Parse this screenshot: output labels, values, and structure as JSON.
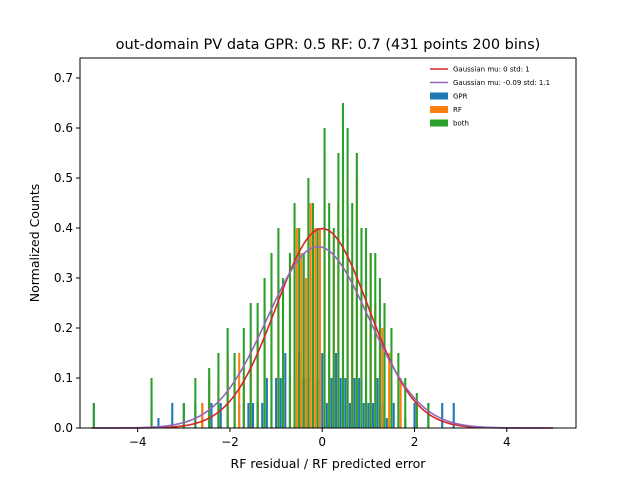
{
  "chart_data": {
    "type": "bar",
    "title": "out-domain PV data GPR: 0.5 RF: 0.7 (431 points 200 bins)",
    "xlabel": "RF residual / RF predicted error",
    "ylabel": "Normalized Counts",
    "xlim": [
      -5.25,
      5.5
    ],
    "ylim": [
      0,
      0.74
    ],
    "xticks": [
      -4,
      -2,
      0,
      2,
      4
    ],
    "xtick_labels": [
      "−4",
      "−2",
      "0",
      "2",
      "4"
    ],
    "yticks": [
      0.0,
      0.1,
      0.2,
      0.3,
      0.4,
      0.5,
      0.6,
      0.7
    ],
    "ytick_labels": [
      "0.0",
      "0.1",
      "0.2",
      "0.3",
      "0.4",
      "0.5",
      "0.6",
      "0.7"
    ],
    "grid": false,
    "legend_position": "top-right",
    "colors": {
      "gpr": "#1f77b4",
      "rf": "#ff7f0e",
      "both": "#2ca02c",
      "gauss1": "#d62728",
      "gauss2": "#9467bd"
    },
    "series": [
      {
        "name": "GPR",
        "kind": "bar",
        "values": [
          [
            -4.95,
            0.05
          ],
          [
            -3.7,
            0.05
          ],
          [
            -3.55,
            0.02
          ],
          [
            -3.25,
            0.05
          ],
          [
            -3.0,
            0.05
          ],
          [
            -2.75,
            0.05
          ],
          [
            -2.6,
            0.05
          ],
          [
            -2.4,
            0.05
          ],
          [
            -2.2,
            0.05
          ],
          [
            -2.05,
            0.02
          ],
          [
            -1.9,
            0.05
          ],
          [
            -1.8,
            0.05
          ],
          [
            -1.7,
            0.05
          ],
          [
            -1.6,
            0.05
          ],
          [
            -1.5,
            0.05
          ],
          [
            -1.4,
            0.05
          ],
          [
            -1.3,
            0.05
          ],
          [
            -1.2,
            0.1
          ],
          [
            -1.1,
            0.05
          ],
          [
            -1.0,
            0.1
          ],
          [
            -0.9,
            0.1
          ],
          [
            -0.8,
            0.15
          ],
          [
            -0.7,
            0.1
          ],
          [
            -0.6,
            0.1
          ],
          [
            -0.5,
            0.15
          ],
          [
            -0.4,
            0.1
          ],
          [
            -0.3,
            0.1
          ],
          [
            -0.2,
            0.15
          ],
          [
            -0.1,
            0.1
          ],
          [
            0.0,
            0.15
          ],
          [
            0.1,
            0.05
          ],
          [
            0.2,
            0.1
          ],
          [
            0.3,
            0.15
          ],
          [
            0.4,
            0.1
          ],
          [
            0.5,
            0.1
          ],
          [
            0.6,
            0.05
          ],
          [
            0.7,
            0.1
          ],
          [
            0.8,
            0.1
          ],
          [
            0.9,
            0.05
          ],
          [
            1.0,
            0.05
          ],
          [
            1.1,
            0.05
          ],
          [
            1.2,
            0.1
          ],
          [
            1.3,
            0.05
          ],
          [
            1.4,
            0.02
          ],
          [
            1.55,
            0.05
          ],
          [
            1.8,
            0.02
          ],
          [
            2.0,
            0.05
          ],
          [
            2.3,
            0.05
          ],
          [
            2.6,
            0.05
          ],
          [
            2.85,
            0.05
          ]
        ]
      },
      {
        "name": "RF",
        "kind": "bar",
        "values": [
          [
            -3.7,
            0.08
          ],
          [
            -2.6,
            0.05
          ],
          [
            -2.45,
            0.1
          ],
          [
            -2.25,
            0.1
          ],
          [
            -2.05,
            0.15
          ],
          [
            -1.9,
            0.12
          ],
          [
            -1.8,
            0.15
          ],
          [
            -1.7,
            0.1
          ],
          [
            -1.55,
            0.15
          ],
          [
            -1.4,
            0.2
          ],
          [
            -1.25,
            0.25
          ],
          [
            -1.1,
            0.25
          ],
          [
            -0.95,
            0.3
          ],
          [
            -0.85,
            0.2
          ],
          [
            -0.7,
            0.3
          ],
          [
            -0.55,
            0.4
          ],
          [
            -0.45,
            0.35
          ],
          [
            -0.35,
            0.3
          ],
          [
            -0.25,
            0.45
          ],
          [
            -0.15,
            0.4
          ],
          [
            -0.05,
            0.4
          ],
          [
            0.05,
            0.55
          ],
          [
            0.15,
            0.4
          ],
          [
            0.25,
            0.35
          ],
          [
            0.35,
            0.45
          ],
          [
            0.45,
            0.5
          ],
          [
            0.55,
            0.4
          ],
          [
            0.65,
            0.3
          ],
          [
            0.75,
            0.5
          ],
          [
            0.85,
            0.3
          ],
          [
            0.95,
            0.25
          ],
          [
            1.05,
            0.35
          ],
          [
            1.15,
            0.25
          ],
          [
            1.3,
            0.2
          ],
          [
            1.45,
            0.15
          ],
          [
            1.7,
            0.1
          ],
          [
            2.05,
            0.05
          ]
        ]
      },
      {
        "name": "both",
        "kind": "bar",
        "values": [
          [
            -4.95,
            0.05
          ],
          [
            -3.7,
            0.1
          ],
          [
            -3.0,
            0.05
          ],
          [
            -2.75,
            0.1
          ],
          [
            -2.45,
            0.12
          ],
          [
            -2.25,
            0.15
          ],
          [
            -2.05,
            0.2
          ],
          [
            -1.9,
            0.15
          ],
          [
            -1.7,
            0.2
          ],
          [
            -1.55,
            0.25
          ],
          [
            -1.4,
            0.25
          ],
          [
            -1.25,
            0.3
          ],
          [
            -1.1,
            0.35
          ],
          [
            -0.95,
            0.4
          ],
          [
            -0.85,
            0.3
          ],
          [
            -0.7,
            0.35
          ],
          [
            -0.6,
            0.45
          ],
          [
            -0.5,
            0.4
          ],
          [
            -0.4,
            0.35
          ],
          [
            -0.3,
            0.5
          ],
          [
            -0.2,
            0.45
          ],
          [
            -0.1,
            0.4
          ],
          [
            0.05,
            0.6
          ],
          [
            0.15,
            0.45
          ],
          [
            0.25,
            0.4
          ],
          [
            0.35,
            0.55
          ],
          [
            0.45,
            0.65
          ],
          [
            0.55,
            0.6
          ],
          [
            0.65,
            0.45
          ],
          [
            0.75,
            0.55
          ],
          [
            0.85,
            0.4
          ],
          [
            0.95,
            0.4
          ],
          [
            1.05,
            0.35
          ],
          [
            1.15,
            0.35
          ],
          [
            1.25,
            0.3
          ],
          [
            1.35,
            0.25
          ],
          [
            1.5,
            0.2
          ],
          [
            1.65,
            0.15
          ],
          [
            1.8,
            0.1
          ],
          [
            2.05,
            0.07
          ],
          [
            2.3,
            0.05
          ]
        ]
      },
      {
        "name": "Gaussian mu: 0 std: 1",
        "kind": "line",
        "mu": 0,
        "std": 1,
        "x_range": [
          -5,
          5
        ]
      },
      {
        "name": "Gaussian mu: -0.09 std: 1.1",
        "kind": "line",
        "mu": -0.09,
        "std": 1.1,
        "x_range": [
          -5,
          5
        ]
      }
    ]
  }
}
